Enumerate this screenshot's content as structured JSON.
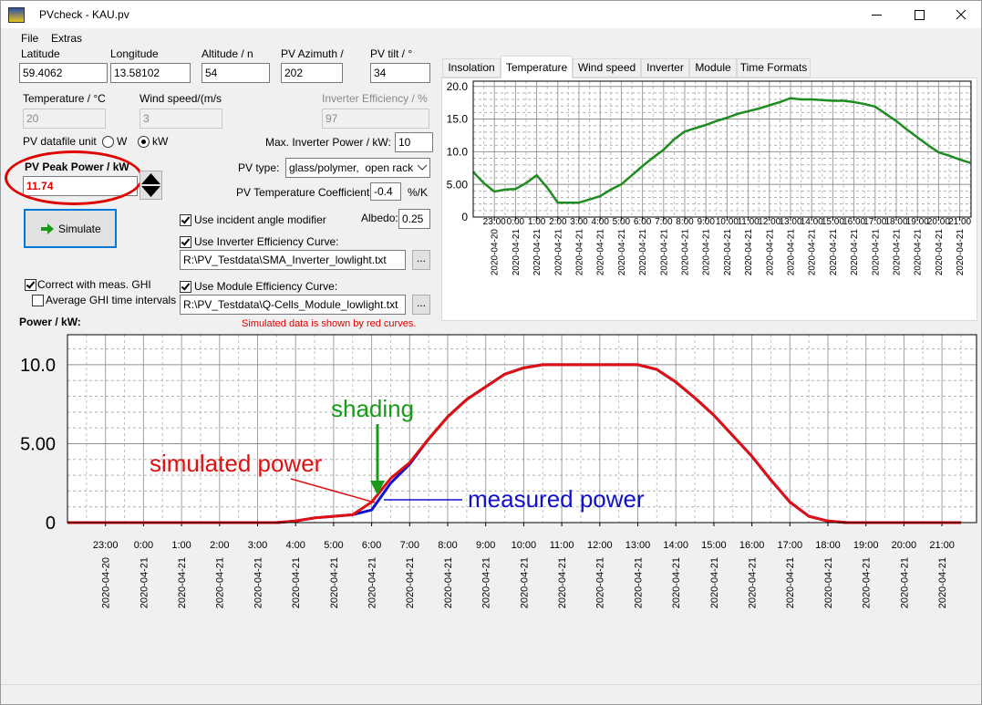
{
  "window": {
    "title": "PVcheck - KAU.pv"
  },
  "menu": [
    "File",
    "Extras"
  ],
  "site": [
    {
      "label": "Latitude",
      "value": 59.4062
    },
    {
      "label": "Longitude",
      "value": 13.58102
    },
    {
      "label": "Altitude / n",
      "value": 54
    },
    {
      "label": "PV Azimuth /",
      "value": 202
    },
    {
      "label": "PV tilt / °",
      "value": 34
    }
  ],
  "conditions": [
    {
      "label": "Temperature / °C",
      "value": 20
    },
    {
      "label": "Wind speed/(m/s",
      "value": 3
    },
    {
      "label": "Inverter Efficiency / %",
      "value": 97
    }
  ],
  "datafile_unit": {
    "label": "PV datafile unit",
    "options": [
      "W",
      "kW"
    ]
  },
  "max_inverter_power": {
    "label": "Max. Inverter Power / kW:",
    "value": 10
  },
  "peak_power": {
    "label": "PV Peak Power / kW",
    "value": 11.74
  },
  "pv_type": {
    "label": "PV type:",
    "value": "glass/polymer,  open rack"
  },
  "temp_coefficient": {
    "label": "PV Temperature Coefficient:",
    "value": -0.4,
    "unit": "%/K"
  },
  "simulate_button": "Simulate",
  "options": {
    "incident_angle": "Use incident angle modifier",
    "albedo": {
      "label": "Albedo:",
      "value": 0.25
    },
    "inverter_curve": {
      "label": "Use Inverter Efficiency Curve:",
      "file": "R:\\PV_Testdata\\SMA_Inverter_lowlight.txt"
    },
    "module_curve": {
      "label": "Use Module Efficiency Curve:",
      "file": "R:\\PV_Testdata\\Q-Cells_Module_lowlight.txt"
    },
    "correct_ghi": "Correct with meas. GHI",
    "average_ghi": "Average GHI time intervals"
  },
  "browse_button": "...",
  "tabs": [
    "Insolation",
    "Temperature",
    "Wind speed",
    "Inverter",
    "Module",
    "Time Formats"
  ],
  "chart_data": [
    {
      "type": "line",
      "categories": [
        null,
        null,
        "23:00",
        null,
        "0:00",
        null,
        "1:00",
        null,
        "2:00",
        null,
        "3:00",
        null,
        "4:00",
        null,
        "5:00",
        null,
        "6:00",
        null,
        "7:00",
        null,
        "8:00",
        null,
        "9:00",
        null,
        "10:00",
        null,
        "11:00",
        null,
        "12:00",
        null,
        "13:00",
        null,
        "14:00",
        null,
        "15:00",
        null,
        "16:00",
        null,
        "17:00",
        null,
        "18:00",
        null,
        "19:00",
        null,
        "20:00",
        null,
        "21:00",
        null
      ],
      "dates": [
        null,
        null,
        "2020-04-20",
        null,
        "2020-04-21",
        null,
        "2020-04-21",
        null,
        "2020-04-21",
        null,
        "2020-04-21",
        null,
        "2020-04-21",
        null,
        "2020-04-21",
        null,
        "2020-04-21",
        null,
        "2020-04-21",
        null,
        "2020-04-21",
        null,
        "2020-04-21",
        null,
        "2020-04-21",
        null,
        "2020-04-21",
        null,
        "2020-04-21",
        null,
        "2020-04-21",
        null,
        "2020-04-21",
        null,
        "2020-04-21",
        null,
        "2020-04-21",
        null,
        "2020-04-21",
        null,
        "2020-04-21",
        null,
        "2020-04-21",
        null,
        "2020-04-21",
        null,
        "2020-04-21",
        null
      ],
      "values": [
        6.9,
        5.2,
        3.9,
        4.2,
        4.3,
        5.2,
        6.4,
        4.5,
        2.2,
        2.2,
        2.2,
        2.7,
        3.2,
        4.2,
        5.0,
        6.4,
        7.8,
        9.1,
        10.3,
        11.9,
        13.1,
        13.6,
        14.1,
        14.7,
        15.2,
        15.8,
        16.2,
        16.6,
        17.1,
        17.6,
        18.2,
        18.0,
        18.0,
        17.9,
        17.8,
        17.8,
        17.6,
        17.3,
        16.9,
        15.8,
        14.7,
        13.4,
        12.2,
        11.0,
        9.9,
        9.4,
        8.8,
        8.3
      ],
      "color": "#1e8c1e",
      "ylim": [
        0,
        20.8
      ],
      "yticks": [
        0,
        {
          "value": 5,
          "label": "5.00"
        },
        {
          "value": 10,
          "label": "10.0"
        },
        {
          "value": 15,
          "label": "15.0"
        },
        {
          "value": 20,
          "label": "20.0"
        }
      ],
      "grid": true
    },
    {
      "type": "line",
      "title": "Power / kW:",
      "subtitle": "Simulated data is shown by red curves.",
      "annotation": "shading",
      "categories": [
        null,
        null,
        "23:00",
        null,
        "0:00",
        null,
        "1:00",
        null,
        "2:00",
        null,
        "3:00",
        null,
        "4:00",
        null,
        "5:00",
        null,
        "6:00",
        null,
        "7:00",
        null,
        "8:00",
        null,
        "9:00",
        null,
        "10:00",
        null,
        "11:00",
        null,
        "12:00",
        null,
        "13:00",
        null,
        "14:00",
        null,
        "15:00",
        null,
        "16:00",
        null,
        "17:00",
        null,
        "18:00",
        null,
        "19:00",
        null,
        "20:00",
        null,
        "21:00",
        null
      ],
      "dates": [
        null,
        null,
        "2020-04-20",
        null,
        "2020-04-21",
        null,
        "2020-04-21",
        null,
        "2020-04-21",
        null,
        "2020-04-21",
        null,
        "2020-04-21",
        null,
        "2020-04-21",
        null,
        "2020-04-21",
        null,
        "2020-04-21",
        null,
        "2020-04-21",
        null,
        "2020-04-21",
        null,
        "2020-04-21",
        null,
        "2020-04-21",
        null,
        "2020-04-21",
        null,
        "2020-04-21",
        null,
        "2020-04-21",
        null,
        "2020-04-21",
        null,
        "2020-04-21",
        null,
        "2020-04-21",
        null,
        "2020-04-21",
        null,
        "2020-04-21",
        null,
        "2020-04-21",
        null,
        "2020-04-21",
        null
      ],
      "series": [
        {
          "name": "measured power",
          "color": "#1010d0",
          "values": [
            0,
            0,
            0,
            0,
            0,
            0,
            0,
            0,
            0,
            0,
            0,
            0,
            0.1,
            0.3,
            0.4,
            0.5,
            0.8,
            2.5,
            3.7,
            5.3,
            6.7,
            7.8,
            8.6,
            9.4,
            9.8,
            10.0,
            10.0,
            10.0,
            10.0,
            10.0,
            10.0,
            9.7,
            8.9,
            7.9,
            6.8,
            5.5,
            4.2,
            2.7,
            1.3,
            0.4,
            0.1,
            0,
            0,
            0,
            0,
            0,
            0,
            0
          ]
        },
        {
          "name": "simulated power",
          "color": "#e01010",
          "values": [
            0,
            0,
            0,
            0,
            0,
            0,
            0,
            0,
            0,
            0,
            0,
            0,
            0.1,
            0.3,
            0.4,
            0.5,
            1.3,
            2.8,
            3.8,
            5.3,
            6.7,
            7.8,
            8.6,
            9.4,
            9.8,
            10.0,
            10.0,
            10.0,
            10.0,
            10.0,
            10.0,
            9.7,
            8.9,
            7.9,
            6.8,
            5.5,
            4.2,
            2.7,
            1.3,
            0.4,
            0.1,
            0,
            0,
            0,
            0,
            0,
            0,
            0
          ]
        }
      ],
      "ylim": [
        0,
        11.9
      ],
      "yticks": [
        0,
        {
          "value": 5,
          "label": "5.00"
        },
        {
          "value": 10,
          "label": "10.0"
        }
      ],
      "grid": true
    }
  ]
}
